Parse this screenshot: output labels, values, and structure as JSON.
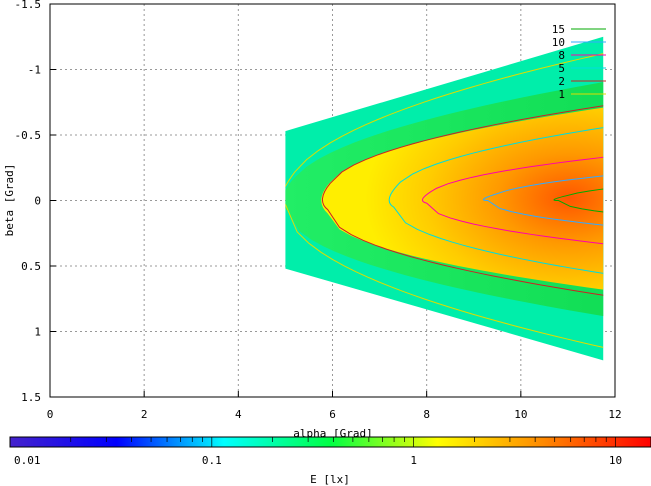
{
  "chart_data": {
    "type": "heatmap",
    "title": "",
    "xlabel": "alpha [Grad]",
    "ylabel": "beta [Grad]",
    "xlim": [
      0,
      12
    ],
    "ylim": [
      -1.5,
      1.5
    ],
    "y_reversed": true,
    "xticks": [
      "0",
      "2",
      "4",
      "6",
      "8",
      "10",
      "12"
    ],
    "yticks": [
      "-1.5",
      "-1",
      "-0.5",
      "0",
      "0.5",
      "1",
      "1.5"
    ],
    "grid": true,
    "data_region": {
      "x_range": [
        5,
        11.75
      ],
      "top_boundary": [
        [
          5,
          -0.53
        ],
        [
          11.75,
          -1.25
        ]
      ],
      "bottom_boundary": [
        [
          5,
          0.52
        ],
        [
          11.75,
          1.22
        ]
      ]
    },
    "contours": {
      "legend_placement": "top-right",
      "levels": [
        {
          "label": "15",
          "color": "#00aa00"
        },
        {
          "label": "10",
          "color": "#33aaff"
        },
        {
          "label": "8",
          "color": "#ff00aa"
        },
        {
          "label": "5",
          "color": "#00dddd"
        },
        {
          "label": "2",
          "color": "#cc2222"
        },
        {
          "label": "1",
          "color": "#dddd00"
        }
      ]
    },
    "colorbar": {
      "label": "E [lx]",
      "scale": "log",
      "range": [
        0.01,
        15
      ],
      "ticks": [
        "0.01",
        "0.1",
        "1",
        "10"
      ],
      "colors": [
        "#4422cc",
        "#0000ff",
        "#00ffff",
        "#00ff44",
        "#ffff00",
        "#ff8800",
        "#ff0000"
      ]
    }
  }
}
